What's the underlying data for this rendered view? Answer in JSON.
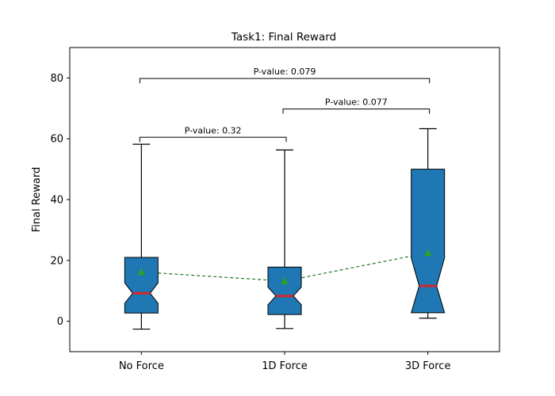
{
  "chart_data": {
    "type": "box",
    "title": "Task1: Final Reward",
    "xlabel": "",
    "ylabel": "Final Reward",
    "ylim": [
      -10,
      90
    ],
    "yticks": [
      0,
      20,
      40,
      60,
      80
    ],
    "categories": [
      "No Force",
      "1D Force",
      "3D Force"
    ],
    "boxes": [
      {
        "whisker_low": -2.6,
        "q1": 2.7,
        "median": 9.2,
        "q3": 21.0,
        "whisker_high": 58.2,
        "notch_low": 5.9,
        "notch_high": 12.6,
        "mean": 16.2
      },
      {
        "whisker_low": -2.4,
        "q1": 2.2,
        "median": 8.3,
        "q3": 17.8,
        "whisker_high": 56.3,
        "notch_low": 5.4,
        "notch_high": 11.2,
        "mean": 13.2
      },
      {
        "whisker_low": 1.0,
        "q1": 2.8,
        "median": 11.6,
        "q3": 50.0,
        "whisker_high": 63.3,
        "notch_low": 2.8,
        "notch_high": 20.8,
        "mean": 22.5
      }
    ],
    "mean_line": {
      "style": "dashed",
      "color": "#1f7a1f"
    },
    "comparisons": [
      {
        "from": 0,
        "to": 1,
        "label": "P-value: 0.32",
        "y": 60.5
      },
      {
        "from": 1,
        "to": 2,
        "label": "P-value: 0.077",
        "y": 69.8
      },
      {
        "from": 0,
        "to": 2,
        "label": "P-value: 0.079",
        "y": 79.8
      }
    ],
    "colors": {
      "box_fill": "#1f77b4",
      "median": "#d62728",
      "mean_marker": "#2ca02c",
      "mean_line": "#1f7a1f"
    },
    "grid": false,
    "legend": "none"
  }
}
